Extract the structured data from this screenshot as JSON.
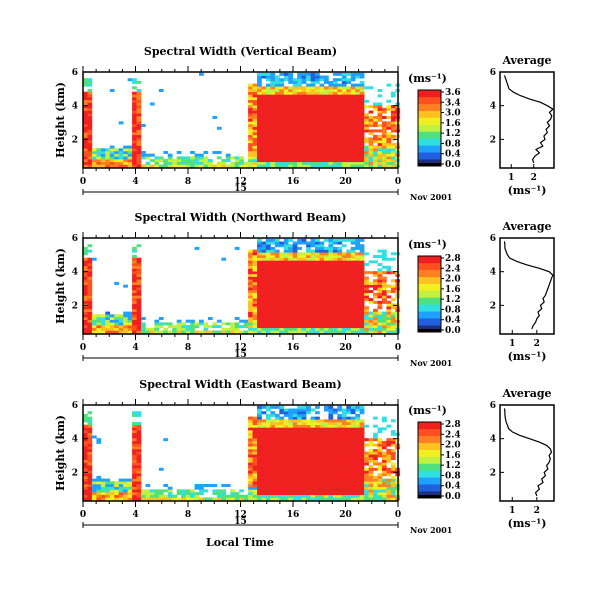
{
  "chart_data": [
    {
      "type": "heatmap",
      "title": "Spectral Width (Vertical Beam)",
      "ylabel": "Height (km)",
      "xlabel": "",
      "x_ticks": [
        "0",
        "4",
        "8",
        "12",
        "16",
        "20",
        "0"
      ],
      "y_ticks": [
        "6",
        "4",
        "2"
      ],
      "xlim": [
        0,
        24
      ],
      "ylim": [
        0.3,
        6.0
      ],
      "day_label": "15",
      "date_label": "Nov 2001",
      "colorbar_unit": "(ms⁻¹)",
      "colorbar_ticks": [
        "3.6",
        "3.4",
        "3.0",
        "1.6",
        "1.2",
        "0.8",
        "0.4",
        "0.0"
      ],
      "colorbar_range": [
        0.0,
        3.6
      ],
      "colors": [
        "#203080",
        "#2060e0",
        "#20a0ff",
        "#30e0e0",
        "#50e080",
        "#c0f040",
        "#f0f020",
        "#ffc020",
        "#ff8020",
        "#ff5020",
        "#f02020"
      ],
      "profile": {
        "title": "Average",
        "x_ticks": [
          "1",
          "2"
        ],
        "y_ticks": [
          "6",
          "4",
          "2"
        ],
        "xlim": [
          0.5,
          2.9
        ],
        "ylim": [
          0.3,
          6.0
        ],
        "xlabel": "(ms⁻¹)",
        "height": [
          0.6,
          0.8,
          1.0,
          1.2,
          1.4,
          1.6,
          1.8,
          2.0,
          2.2,
          2.4,
          2.6,
          2.8,
          3.0,
          3.2,
          3.4,
          3.6,
          3.8,
          4.0,
          4.2,
          4.4,
          4.6,
          4.8,
          5.0,
          5.2,
          5.4,
          5.6,
          5.8
        ],
        "width": [
          2.0,
          1.95,
          2.05,
          2.25,
          2.1,
          2.4,
          2.3,
          2.5,
          2.45,
          2.6,
          2.55,
          2.7,
          2.6,
          2.75,
          2.8,
          2.7,
          2.85,
          2.6,
          2.3,
          1.8,
          1.4,
          1.1,
          0.9,
          0.85,
          0.8,
          0.75,
          0.7
        ]
      }
    },
    {
      "type": "heatmap",
      "title": "Spectral Width (Northward Beam)",
      "ylabel": "Height (km)",
      "xlabel": "",
      "x_ticks": [
        "0",
        "4",
        "8",
        "12",
        "16",
        "20",
        "0"
      ],
      "y_ticks": [
        "6",
        "4",
        "2"
      ],
      "xlim": [
        0,
        24
      ],
      "ylim": [
        0.3,
        6.0
      ],
      "day_label": "15",
      "date_label": "Nov 2001",
      "colorbar_unit": "(ms⁻¹)",
      "colorbar_ticks": [
        "2.8",
        "2.4",
        "2.0",
        "1.6",
        "1.2",
        "0.8",
        "0.4",
        "0.0"
      ],
      "colorbar_range": [
        0.0,
        2.8
      ],
      "colors": [
        "#203080",
        "#2060e0",
        "#20a0ff",
        "#30e0e0",
        "#50e080",
        "#c0f040",
        "#f0f020",
        "#ffc020",
        "#ff8020",
        "#ff5020",
        "#f02020"
      ],
      "profile": {
        "title": "Average",
        "x_ticks": [
          "1",
          "2"
        ],
        "y_ticks": [
          "6",
          "4",
          "2"
        ],
        "xlim": [
          0.5,
          2.7
        ],
        "ylim": [
          0.3,
          6.0
        ],
        "xlabel": "(ms⁻¹)",
        "height": [
          0.6,
          0.8,
          1.0,
          1.2,
          1.4,
          1.6,
          1.8,
          2.0,
          2.2,
          2.4,
          2.6,
          2.8,
          3.0,
          3.2,
          3.4,
          3.6,
          3.8,
          4.0,
          4.2,
          4.4,
          4.6,
          4.8,
          5.0,
          5.2,
          5.4,
          5.6,
          5.8
        ],
        "width": [
          1.8,
          1.85,
          1.95,
          2.0,
          2.1,
          2.05,
          2.2,
          2.15,
          2.3,
          2.25,
          2.35,
          2.4,
          2.45,
          2.5,
          2.55,
          2.6,
          2.65,
          2.5,
          2.1,
          1.6,
          1.2,
          0.9,
          0.8,
          0.75,
          0.7,
          0.7,
          0.68
        ]
      }
    },
    {
      "type": "heatmap",
      "title": "Spectral Width (Eastward Beam)",
      "ylabel": "Height (km)",
      "xlabel": "Local Time",
      "x_ticks": [
        "0",
        "4",
        "8",
        "12",
        "16",
        "20",
        "0"
      ],
      "y_ticks": [
        "6",
        "4",
        "2"
      ],
      "xlim": [
        0,
        24
      ],
      "ylim": [
        0.3,
        6.0
      ],
      "day_label": "15",
      "date_label": "Nov 2001",
      "colorbar_unit": "(ms⁻¹)",
      "colorbar_ticks": [
        "2.8",
        "2.4",
        "2.0",
        "1.6",
        "1.2",
        "0.8",
        "0.4",
        "0.0"
      ],
      "colorbar_range": [
        0.0,
        2.8
      ],
      "colors": [
        "#203080",
        "#2060e0",
        "#20a0ff",
        "#30e0e0",
        "#50e080",
        "#c0f040",
        "#f0f020",
        "#ffc020",
        "#ff8020",
        "#ff5020",
        "#f02020"
      ],
      "profile": {
        "title": "Average",
        "x_ticks": [
          "1",
          "2"
        ],
        "y_ticks": [
          "6",
          "4",
          "2"
        ],
        "xlim": [
          0.5,
          2.7
        ],
        "ylim": [
          0.3,
          6.0
        ],
        "xlabel": "(ms⁻¹)",
        "height": [
          0.6,
          0.8,
          1.0,
          1.2,
          1.4,
          1.6,
          1.8,
          2.0,
          2.2,
          2.4,
          2.6,
          2.8,
          3.0,
          3.2,
          3.4,
          3.6,
          3.8,
          4.0,
          4.2,
          4.4,
          4.6,
          4.8,
          5.0,
          5.2,
          5.4,
          5.6,
          5.8
        ],
        "width": [
          2.0,
          1.95,
          2.1,
          2.05,
          2.25,
          2.2,
          2.35,
          2.3,
          2.45,
          2.4,
          2.5,
          2.55,
          2.5,
          2.6,
          2.55,
          2.4,
          2.1,
          1.7,
          1.3,
          1.0,
          0.85,
          0.8,
          0.75,
          0.72,
          0.7,
          0.7,
          0.68
        ]
      }
    }
  ]
}
